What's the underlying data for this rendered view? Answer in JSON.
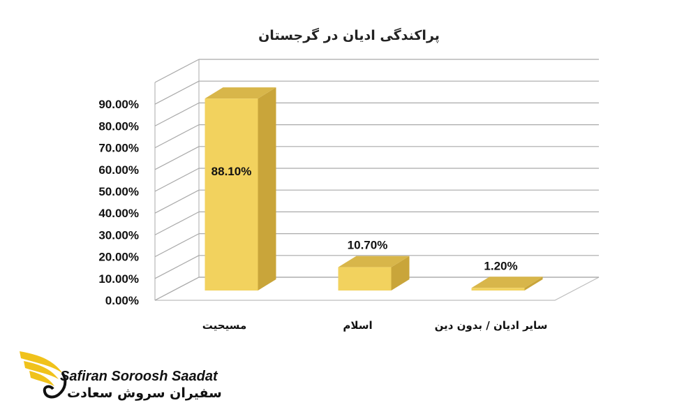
{
  "chart_data": {
    "type": "bar",
    "title": "پراکندگی ادیان در گرجستان",
    "categories": [
      "مسیحیت",
      "اسلام",
      "سایر ادیان / بدون دین"
    ],
    "values": [
      88.1,
      10.7,
      1.2
    ],
    "data_labels": [
      "88.10%",
      "10.70%",
      "1.20%"
    ],
    "y_ticks": [
      "0.00%",
      "10.00%",
      "20.00%",
      "30.00%",
      "40.00%",
      "50.00%",
      "60.00%",
      "70.00%",
      "80.00%",
      "90.00%"
    ],
    "ylim": [
      0,
      100
    ],
    "grid": true,
    "style": "3d-column",
    "bar_color": "#F2D25E"
  },
  "logo": {
    "name_en": "Safiran Soroosh Saadat",
    "name_fa": "سفیران سروش سعادت",
    "accent_color": "#F0C21B"
  }
}
